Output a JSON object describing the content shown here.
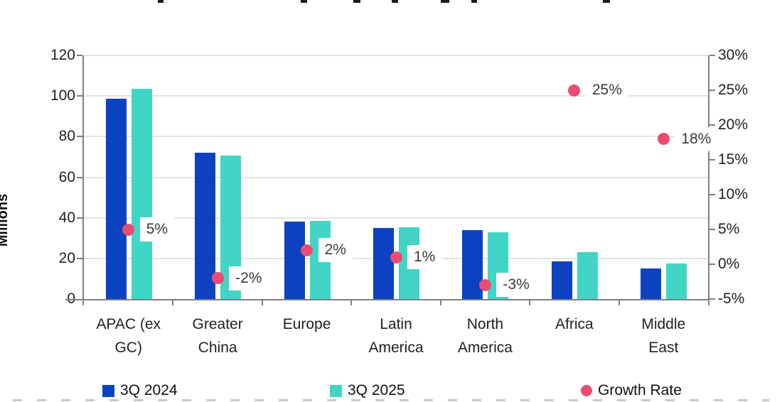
{
  "chart_data": {
    "type": "bar",
    "subtype": "clustered-columns-with-growth-rate-points",
    "title": "",
    "categories": [
      "APAC (ex GC)",
      "Greater China",
      "Europe",
      "Latin America",
      "North America",
      "Africa",
      "Middle East"
    ],
    "category_label_lines": [
      [
        "APAC (ex",
        "GC)"
      ],
      [
        "Greater",
        "China"
      ],
      [
        "Europe"
      ],
      [
        "Latin",
        "America"
      ],
      [
        "North",
        "America"
      ],
      [
        "Africa"
      ],
      [
        "Middle",
        "East"
      ]
    ],
    "series": [
      {
        "name": "3Q 2024",
        "type": "bar",
        "color": "#0c42c2",
        "axis": "left",
        "values": [
          98.5,
          72,
          38,
          35,
          34,
          18.5,
          15
        ]
      },
      {
        "name": "3Q 2025",
        "type": "bar",
        "color": "#41d5c5",
        "axis": "left",
        "values": [
          103.5,
          70.5,
          38.5,
          35.5,
          33,
          23,
          17.5
        ]
      },
      {
        "name": "Growth Rate",
        "type": "point",
        "color": "#eb4d72",
        "axis": "right",
        "values": [
          5,
          -2,
          2,
          1,
          -3,
          25,
          18
        ],
        "point_labels": [
          "5%",
          "-2%",
          "2%",
          "1%",
          "-3%",
          "25%",
          "18%"
        ]
      }
    ],
    "left_axis": {
      "title": "Millions",
      "min": 0,
      "max": 120,
      "tick_interval": 20,
      "tick_labels": [
        "120",
        "100",
        "80",
        "60",
        "40",
        "20",
        "0"
      ]
    },
    "right_axis": {
      "min": -5,
      "max": 30,
      "tick_interval": 5,
      "tick_labels": [
        "30%",
        "25%",
        "20%",
        "15%",
        "10%",
        "5%",
        "0%",
        "-5%"
      ]
    },
    "grid": "horizontal-on",
    "legend_position": "bottom"
  },
  "legend": {
    "items": [
      {
        "label": "3Q 2024",
        "marker": "square",
        "color": "#0c42c2"
      },
      {
        "label": "3Q 2025",
        "marker": "square",
        "color": "#41d5c5"
      },
      {
        "label": "Growth Rate",
        "marker": "circle",
        "color": "#eb4d72"
      }
    ]
  },
  "colors": {
    "bar_2024": "#0c42c2",
    "bar_2025": "#41d5c5",
    "growth_dot": "#eb4d72",
    "gridline": "#e3e3e3",
    "axis": "#7f7f7f",
    "text": "#1f1f1f",
    "background": "#ffffff"
  }
}
